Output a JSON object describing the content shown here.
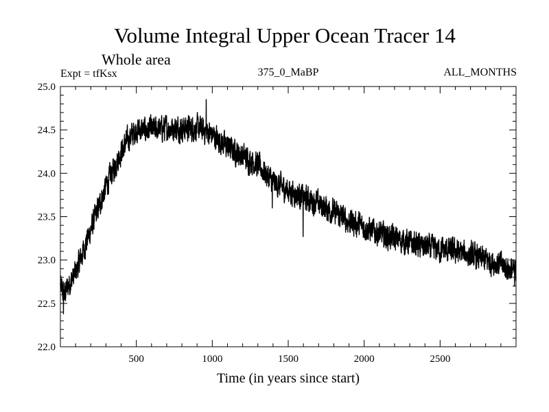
{
  "chart_data": {
    "type": "line",
    "title": "Volume Integral Upper Ocean Tracer 14",
    "subtitle": "Whole area",
    "left_label": "Expt = tfKsx",
    "center_label": "375_0_MaBP",
    "right_label": "ALL_MONTHS",
    "xlabel": "Time (in years since start)",
    "ylabel": "",
    "xlim": [
      0,
      3000
    ],
    "ylim": [
      22.0,
      25.0
    ],
    "x_ticks": [
      500,
      1000,
      1500,
      2000,
      2500
    ],
    "x_tick_labels": [
      "500",
      "1000",
      "1500",
      "2000",
      "2500"
    ],
    "y_ticks": [
      22.0,
      22.5,
      23.0,
      23.5,
      24.0,
      24.5,
      25.0
    ],
    "y_tick_labels": [
      "22.0",
      "22.5",
      "23.0",
      "23.5",
      "24.0",
      "24.5",
      "25.0"
    ],
    "grid": false,
    "series": [
      {
        "name": "Tracer 14",
        "color": "#000000",
        "trend_x": [
          0,
          25,
          50,
          100,
          150,
          200,
          250,
          300,
          350,
          400,
          450,
          500,
          600,
          700,
          800,
          900,
          1000,
          1100,
          1200,
          1300,
          1400,
          1500,
          1600,
          1700,
          1800,
          1900,
          2000,
          2100,
          2200,
          2300,
          2400,
          2500,
          2600,
          2700,
          2800,
          2900,
          3000
        ],
        "trend_y": [
          22.7,
          22.6,
          22.7,
          22.85,
          23.1,
          23.35,
          23.6,
          23.85,
          24.05,
          24.25,
          24.4,
          24.5,
          24.5,
          24.52,
          24.52,
          24.52,
          24.45,
          24.3,
          24.2,
          24.1,
          23.9,
          23.8,
          23.72,
          23.65,
          23.55,
          23.45,
          23.38,
          23.3,
          23.25,
          23.2,
          23.15,
          23.12,
          23.1,
          23.05,
          23.0,
          22.95,
          22.85
        ],
        "noise_amplitude": 0.12,
        "notable_points": [
          {
            "x": 20,
            "y": 22.38
          },
          {
            "x": 960,
            "y": 24.85
          },
          {
            "x": 1395,
            "y": 23.6
          },
          {
            "x": 1598,
            "y": 23.27
          },
          {
            "x": 2990,
            "y": 22.7
          }
        ]
      }
    ]
  }
}
